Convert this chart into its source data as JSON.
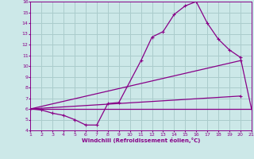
{
  "xlabel": "Windchill (Refroidissement éolien,°C)",
  "bg_color": "#cce8e8",
  "grid_color": "#aacccc",
  "line_color": "#880088",
  "xmin": 1,
  "xmax": 21,
  "ymin": 4,
  "ymax": 16,
  "lines": [
    {
      "x": [
        1,
        2,
        3,
        4,
        5,
        6,
        7,
        8,
        9,
        11,
        12,
        13,
        14,
        15,
        16,
        17,
        18,
        19,
        20,
        21
      ],
      "y": [
        6.0,
        5.9,
        5.6,
        5.4,
        5.0,
        4.5,
        4.5,
        6.5,
        6.6,
        10.5,
        12.7,
        13.2,
        14.8,
        15.6,
        16.0,
        14.0,
        12.5,
        11.5,
        10.8,
        6.0
      ],
      "marker": true
    },
    {
      "x": [
        1,
        21
      ],
      "y": [
        6.0,
        6.0
      ],
      "marker": false
    },
    {
      "x": [
        1,
        20
      ],
      "y": [
        6.0,
        10.5
      ],
      "marker": false
    },
    {
      "x": [
        1,
        20
      ],
      "y": [
        6.0,
        7.2
      ],
      "marker": false
    }
  ]
}
